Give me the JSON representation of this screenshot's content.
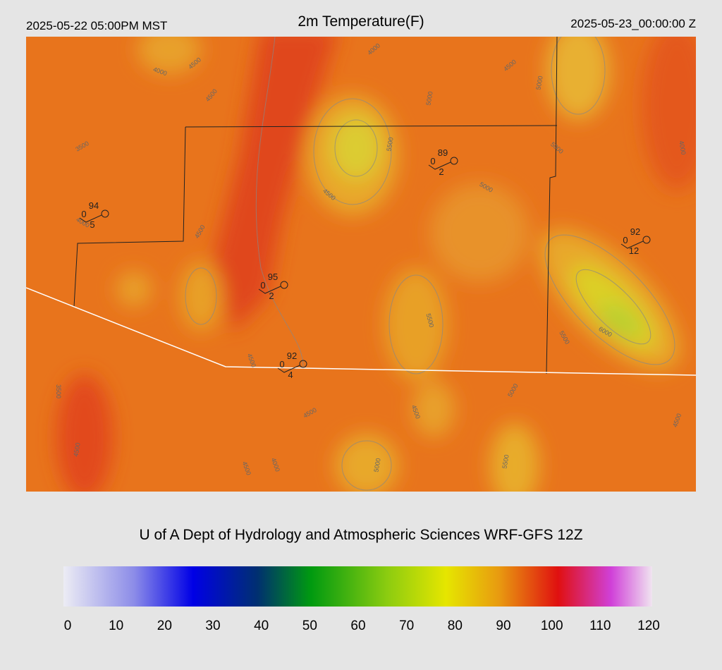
{
  "header": {
    "left": "2025-05-22 05:00PM MST",
    "title": "2m Temperature(F)",
    "right": "2025-05-23_00:00:00 Z"
  },
  "stations": [
    {
      "temperature": 94,
      "dewpoint": 0,
      "wind": 5
    },
    {
      "temperature": 95,
      "dewpoint": 0,
      "wind": 2
    },
    {
      "temperature": 89,
      "dewpoint": 0,
      "wind": 2
    },
    {
      "temperature": 92,
      "dewpoint": 0,
      "wind": 4
    },
    {
      "temperature": 92,
      "dewpoint": 0,
      "wind": 12
    }
  ],
  "contour_labels": [
    4000,
    4500,
    4500,
    3500,
    4000,
    4500,
    5000,
    5000,
    5500,
    4500,
    5000,
    5000,
    4000,
    4500,
    4000,
    5500,
    5500,
    6000,
    4500,
    3500,
    4500,
    4500,
    5000,
    4500,
    4500,
    4000,
    5000,
    5500,
    4500
  ],
  "credit": "U of A Dept of Hydrology and Atmospheric Sciences WRF-GFS 12Z",
  "colorbar": {
    "ticks": [
      0,
      10,
      20,
      30,
      40,
      50,
      60,
      70,
      80,
      90,
      100,
      110,
      120
    ]
  }
}
